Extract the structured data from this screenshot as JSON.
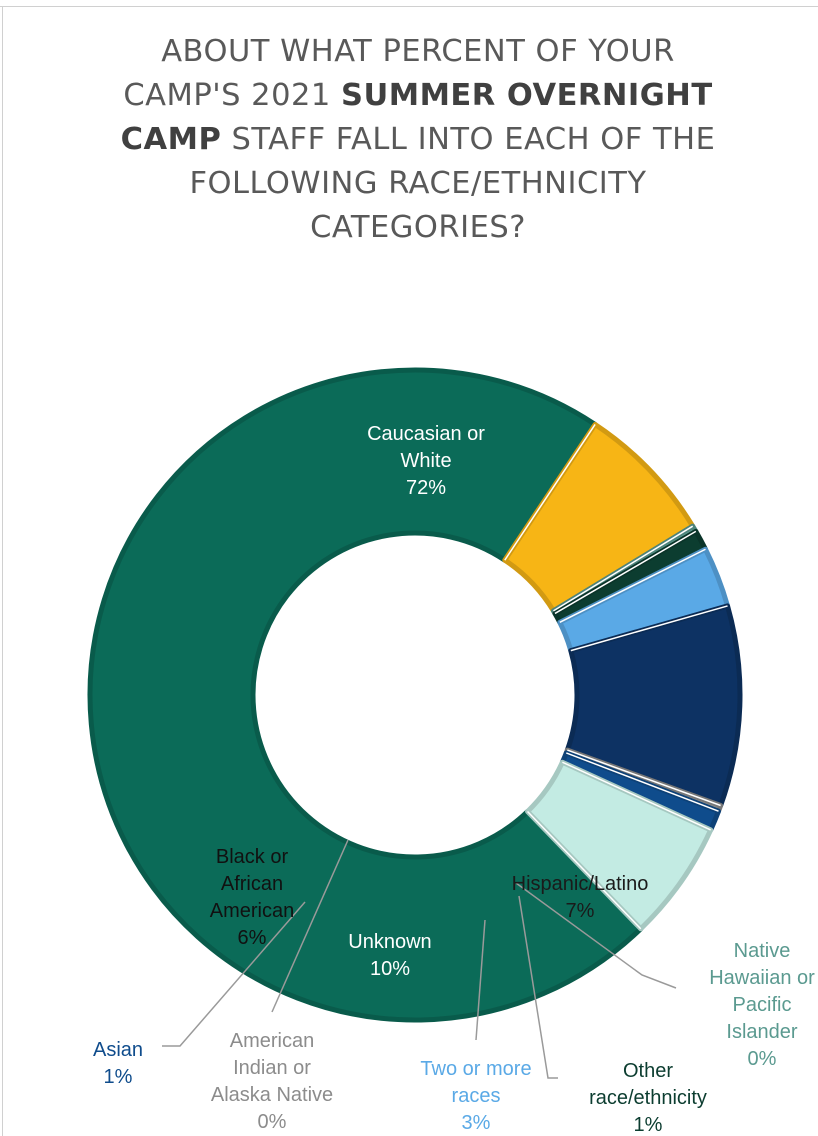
{
  "chart_data": {
    "type": "pie",
    "variant": "donut",
    "title": {
      "line1": "ABOUT WHAT PERCENT OF YOUR",
      "line2_plain": "CAMP'S 2021 ",
      "line2_bold": "SUMMER OVERNIGHT",
      "line3_bold": "CAMP",
      "line3_plain": " STAFF FALL INTO EACH OF THE",
      "line4": "FOLLOWING RACE/ETHNICITY",
      "line5": "CATEGORIES?"
    },
    "slices": [
      {
        "name": "Caucasian or White",
        "label_lines": [
          "Caucasian or",
          "White"
        ],
        "value": 72,
        "value_label": "72%",
        "color": "#0b6b58",
        "label_color": "#ffffff"
      },
      {
        "name": "Hispanic/Latino",
        "label_lines": [
          "Hispanic/Latino"
        ],
        "value": 7,
        "value_label": "7%",
        "color": "#f7b515",
        "label_color": "#1a1a1a"
      },
      {
        "name": "Native Hawaiian or Pacific Islander",
        "label_lines": [
          "Native",
          "Hawaiian or",
          "Pacific",
          "Islander"
        ],
        "value": 0.3,
        "value_label": "0%",
        "color": "#5b9a90",
        "label_color": "#5b9a90"
      },
      {
        "name": "Other race/ethnicity",
        "label_lines": [
          "Other",
          "race/ethnicity"
        ],
        "value": 1,
        "value_label": "1%",
        "color": "#0c3d30",
        "label_color": "#0c3d30"
      },
      {
        "name": "Two or more races",
        "label_lines": [
          "Two or more",
          "races"
        ],
        "value": 3,
        "value_label": "3%",
        "color": "#5aa9e6",
        "label_color": "#5aa9e6"
      },
      {
        "name": "Unknown",
        "label_lines": [
          "Unknown"
        ],
        "value": 10,
        "value_label": "10%",
        "color": "#0d3263",
        "label_color": "#ffffff"
      },
      {
        "name": "American Indian or Alaska Native",
        "label_lines": [
          "American",
          "Indian or",
          "Alaska Native"
        ],
        "value": 0.3,
        "value_label": "0%",
        "color": "#8c8c8c",
        "label_color": "#8c8c8c"
      },
      {
        "name": "Asian",
        "label_lines": [
          "Asian"
        ],
        "value": 1,
        "value_label": "1%",
        "color": "#0f4c8c",
        "label_color": "#0f4c8c"
      },
      {
        "name": "Black or African American",
        "label_lines": [
          "Black or",
          "African",
          "American"
        ],
        "value": 6,
        "value_label": "6%",
        "color": "#c3ebe3",
        "label_color": "#111111"
      }
    ]
  }
}
